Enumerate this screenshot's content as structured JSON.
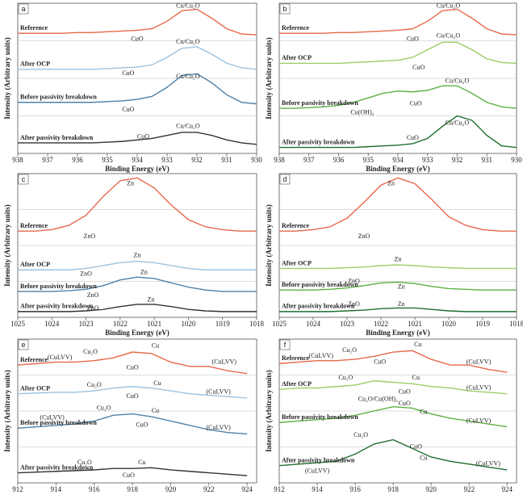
{
  "chart_data": [
    {
      "type": "line",
      "panel": "a",
      "xlabel": "Binding Energy (eV)",
      "ylabel": "Intensity (Arbitrary units)",
      "x": [
        938,
        937.5,
        937,
        936.5,
        936,
        935.5,
        935,
        934.5,
        934,
        933.5,
        933,
        932.5,
        932,
        931.5,
        931,
        930.5,
        930
      ],
      "xlim": [
        938,
        930
      ],
      "xticks": [
        938,
        937,
        936,
        935,
        934,
        933,
        932,
        931,
        930
      ],
      "ylim": [
        0,
        100
      ],
      "series": [
        {
          "name": "Reference",
          "color": "#e8684a",
          "values": [
            80,
            80,
            80,
            80,
            80.5,
            80.5,
            81,
            81.5,
            82,
            83,
            88,
            95,
            96,
            90,
            83,
            79.5,
            79
          ]
        },
        {
          "name": "After OCP",
          "color": "#9cc3e0",
          "values": [
            56,
            56,
            56,
            56,
            56,
            56,
            56.5,
            57,
            57.5,
            59,
            64,
            70,
            71,
            66,
            60,
            57,
            56
          ]
        },
        {
          "name": "Before passivity breakdown",
          "color": "#4f81a8",
          "values": [
            34,
            34,
            34,
            34,
            34,
            34,
            34.5,
            35,
            36,
            38,
            44,
            52,
            53,
            47,
            39,
            34,
            33
          ]
        },
        {
          "name": "After passivity breakdown",
          "color": "#333333",
          "values": [
            7,
            7,
            7,
            7,
            7,
            7,
            7.5,
            8,
            9,
            10,
            12,
            14,
            14,
            12,
            9,
            7,
            6
          ]
        }
      ],
      "annotations": [
        {
          "text": "Cu/Cu₂O",
          "x": 932.3,
          "y": 98
        },
        {
          "text": "CuO",
          "x": 934,
          "y": 76
        },
        {
          "text": "Cu/Cu₂O",
          "x": 932.3,
          "y": 74
        },
        {
          "text": "CuO",
          "x": 934.3,
          "y": 53
        },
        {
          "text": "Cu/Cu₂O",
          "x": 932.3,
          "y": 51
        },
        {
          "text": "CuO",
          "x": 934.3,
          "y": 29
        },
        {
          "text": "Cu/Cu₂O",
          "x": 932.3,
          "y": 18
        },
        {
          "text": "CuO",
          "x": 933.8,
          "y": 11
        }
      ]
    },
    {
      "type": "line",
      "panel": "b",
      "xlabel": "Binding Energy (eV)",
      "ylabel": "Intensity (Arbitrary units)",
      "x": [
        938,
        937.5,
        937,
        936.5,
        936,
        935.5,
        935,
        934.5,
        934,
        933.5,
        933,
        932.5,
        932,
        931.5,
        931,
        930.5,
        930
      ],
      "xlim": [
        938,
        930
      ],
      "xticks": [
        938,
        937,
        936,
        935,
        934,
        933,
        932,
        931,
        930
      ],
      "ylim": [
        0,
        100
      ],
      "series": [
        {
          "name": "Reference",
          "color": "#e8684a",
          "values": [
            80,
            80,
            80,
            80,
            80.5,
            80.5,
            81,
            81.5,
            82,
            83,
            88,
            95,
            96,
            90,
            83,
            79.5,
            79
          ]
        },
        {
          "name": "After OCP",
          "color": "#9ccc65",
          "values": [
            60,
            60,
            60,
            60,
            60,
            60.5,
            61,
            61.5,
            62,
            64,
            69,
            74,
            74,
            69,
            63,
            60.5,
            60
          ]
        },
        {
          "name": "Before passivity breakdown",
          "color": "#5cb044",
          "values": [
            30,
            30,
            30.5,
            31,
            32,
            34,
            37,
            40,
            41.5,
            41,
            42,
            45,
            45,
            40,
            34,
            31,
            30
          ]
        },
        {
          "name": "After passivity breakdown",
          "color": "#1f6e2e",
          "values": [
            4,
            4,
            4,
            4,
            4,
            4,
            4.5,
            5,
            5.5,
            6.5,
            10,
            18,
            25,
            22,
            12,
            5,
            4
          ]
        }
      ],
      "annotations": [
        {
          "text": "Cu/Cu₂O",
          "x": 932.3,
          "y": 98
        },
        {
          "text": "CuO",
          "x": 933.5,
          "y": 76
        },
        {
          "text": "Cu/Cu₂O",
          "x": 932.3,
          "y": 78
        },
        {
          "text": "CuO",
          "x": 933.3,
          "y": 57
        },
        {
          "text": "Cu/Cu₂O",
          "x": 932,
          "y": 48
        },
        {
          "text": "Cu(OH)₂",
          "x": 935.2,
          "y": 27
        },
        {
          "text": "CuO",
          "x": 933.4,
          "y": 33
        },
        {
          "text": "Cu/Cu₂O",
          "x": 932,
          "y": 20
        },
        {
          "text": "CuO",
          "x": 933.5,
          "y": 10
        }
      ]
    },
    {
      "type": "line",
      "panel": "c",
      "xlabel": "Binding Energy (eV)",
      "ylabel": "Intensity (Arbitrary units)",
      "x": [
        1025,
        1024.5,
        1024,
        1023.5,
        1023,
        1022.5,
        1022,
        1021.5,
        1021,
        1020.5,
        1020,
        1019.5,
        1019,
        1018.5,
        1018
      ],
      "xlim": [
        1025,
        1018
      ],
      "xticks": [
        1025,
        1024,
        1023,
        1022,
        1021,
        1020,
        1019,
        1018
      ],
      "ylim": [
        0,
        100
      ],
      "series": [
        {
          "name": "Reference",
          "color": "#e8684a",
          "values": [
            60,
            60,
            61,
            64,
            71,
            84,
            95,
            97,
            90,
            78,
            68,
            63,
            61,
            60,
            60
          ]
        },
        {
          "name": "After OCP",
          "color": "#9cc3e0",
          "values": [
            33,
            33,
            33,
            33,
            34,
            36,
            38,
            39,
            38,
            36,
            34,
            33,
            33,
            33,
            33
          ]
        },
        {
          "name": "Before passivity breakdown",
          "color": "#4f81a8",
          "values": [
            18,
            18,
            18,
            18.5,
            19.5,
            22,
            26,
            28,
            27,
            24,
            21,
            19,
            18,
            18,
            18
          ]
        },
        {
          "name": "After passivity breakdown",
          "color": "#333333",
          "values": [
            4,
            4,
            4,
            4,
            4.5,
            5.5,
            7.5,
            9,
            9,
            7.5,
            5.5,
            4.5,
            4,
            4,
            4
          ]
        }
      ],
      "annotations": [
        {
          "text": "Zn",
          "x": 1021.7,
          "y": 93
        },
        {
          "text": "ZnO",
          "x": 1022.9,
          "y": 56
        },
        {
          "text": "Zn",
          "x": 1021.5,
          "y": 43
        },
        {
          "text": "ZnO",
          "x": 1023,
          "y": 30
        },
        {
          "text": "Zn",
          "x": 1021.3,
          "y": 31
        },
        {
          "text": "ZnO",
          "x": 1022.8,
          "y": 15
        },
        {
          "text": "Zn",
          "x": 1021.1,
          "y": 12
        },
        {
          "text": "ZnO",
          "x": 1022.8,
          "y": 6
        }
      ]
    },
    {
      "type": "line",
      "panel": "d",
      "xlabel": "Binding Energy (eV)",
      "ylabel": "Intensity (Arbitrary units)",
      "x": [
        1025,
        1024.5,
        1024,
        1023.5,
        1023,
        1022.5,
        1022,
        1021.5,
        1021,
        1020.5,
        1020,
        1019.5,
        1019,
        1018.5,
        1018
      ],
      "xlim": [
        1025,
        1018
      ],
      "xticks": [
        1025,
        1024,
        1023,
        1022,
        1021,
        1020,
        1019,
        1018
      ],
      "ylim": [
        0,
        100
      ],
      "series": [
        {
          "name": "Reference",
          "color": "#e8684a",
          "values": [
            60,
            60,
            61,
            63,
            69,
            80,
            92,
            97,
            93,
            82,
            70,
            64,
            61,
            60,
            60
          ]
        },
        {
          "name": "After OCP",
          "color": "#9ccc65",
          "values": [
            34,
            34,
            34,
            34,
            34.5,
            35,
            36,
            36.5,
            36,
            35,
            34.5,
            34,
            34,
            34,
            34
          ]
        },
        {
          "name": "Before passivity breakdown",
          "color": "#5cb044",
          "values": [
            19,
            19,
            19,
            19.5,
            20.5,
            22,
            24,
            24.5,
            23.5,
            21.5,
            20,
            19.5,
            19,
            19,
            19
          ]
        },
        {
          "name": "After passivity breakdown",
          "color": "#1f6e2e",
          "values": [
            4,
            4,
            4,
            4,
            4.5,
            5,
            6,
            6.5,
            6.5,
            5.5,
            4.5,
            4,
            4,
            4,
            4
          ]
        }
      ],
      "annotations": [
        {
          "text": "Zn",
          "x": 1021.7,
          "y": 93
        },
        {
          "text": "ZnO",
          "x": 1022.5,
          "y": 56
        },
        {
          "text": "Zn",
          "x": 1021.5,
          "y": 40
        },
        {
          "text": "ZnO",
          "x": 1022.8,
          "y": 25
        },
        {
          "text": "Zn",
          "x": 1021.4,
          "y": 21
        },
        {
          "text": "ZnO",
          "x": 1022.8,
          "y": 9
        },
        {
          "text": "Zn",
          "x": 1021.4,
          "y": 9
        }
      ]
    },
    {
      "type": "line",
      "panel": "e",
      "ylabel": "Intensity (Arbitrary units)",
      "x": [
        912,
        913,
        914,
        915,
        916,
        917,
        918,
        919,
        920,
        921,
        922,
        923,
        924
      ],
      "xlim": [
        912,
        924.5
      ],
      "xticks": [
        912,
        914,
        916,
        918,
        920,
        922,
        924
      ],
      "ylim": [
        0,
        100
      ],
      "series": [
        {
          "name": "Reference",
          "color": "#e8684a",
          "values": [
            82,
            83,
            84,
            84,
            85,
            87,
            91,
            90,
            84,
            81,
            81,
            78,
            76
          ]
        },
        {
          "name": "After OCP",
          "color": "#9cc3e0",
          "values": [
            62,
            62.5,
            63,
            63,
            64,
            66,
            67,
            66,
            64,
            62,
            61,
            60,
            59
          ]
        },
        {
          "name": "Before passivity breakdown",
          "color": "#4f81a8",
          "values": [
            38,
            39,
            40,
            41,
            43,
            47,
            48,
            46,
            43,
            40,
            37,
            35,
            34
          ]
        },
        {
          "name": "After passivity breakdown",
          "color": "#333333",
          "values": [
            7,
            7.5,
            8,
            8.5,
            9,
            10,
            10,
            10.5,
            9,
            8,
            7,
            6,
            5
          ]
        }
      ],
      "annotations": [
        {
          "text": "(CuLVV)",
          "x": 914.2,
          "y": 87
        },
        {
          "text": "Cu₂O",
          "x": 915.8,
          "y": 91
        },
        {
          "text": "Cu",
          "x": 919.2,
          "y": 95
        },
        {
          "text": "CuO",
          "x": 918,
          "y": 80
        },
        {
          "text": "(CuLVV)",
          "x": 922.8,
          "y": 84
        },
        {
          "text": "Cu₂O",
          "x": 916,
          "y": 68
        },
        {
          "text": "Cu",
          "x": 919.3,
          "y": 69
        },
        {
          "text": "CuO",
          "x": 918,
          "y": 60
        },
        {
          "text": "(CuLVV)",
          "x": 922.5,
          "y": 63
        },
        {
          "text": "(CuLVV)",
          "x": 913.8,
          "y": 45
        },
        {
          "text": "Cu₂O",
          "x": 916.5,
          "y": 52
        },
        {
          "text": "Cu",
          "x": 919.2,
          "y": 50
        },
        {
          "text": "CuO",
          "x": 918.5,
          "y": 40
        },
        {
          "text": "(CuLVV)",
          "x": 922.5,
          "y": 38
        },
        {
          "text": "Cu₂O",
          "x": 915.5,
          "y": 14
        },
        {
          "text": "Cu",
          "x": 918.5,
          "y": 14
        },
        {
          "text": "CuO",
          "x": 917.8,
          "y": 5
        }
      ]
    },
    {
      "type": "line",
      "panel": "f",
      "ylabel": "Intensity (Arbitrary units)",
      "x": [
        912,
        913,
        914,
        915,
        916,
        917,
        918,
        919,
        920,
        921,
        922,
        923,
        924
      ],
      "xlim": [
        912,
        924.5
      ],
      "xticks": [
        912,
        914,
        916,
        918,
        920,
        922,
        924
      ],
      "ylim": [
        0,
        100
      ],
      "series": [
        {
          "name": "Reference",
          "color": "#e8684a",
          "values": [
            83,
            84,
            85,
            85,
            86,
            88,
            91,
            92,
            86,
            82,
            82,
            79,
            77
          ]
        },
        {
          "name": "After OCP",
          "color": "#9ccc65",
          "values": [
            65,
            66,
            66,
            67,
            68,
            71,
            70,
            69,
            67,
            66,
            64,
            63,
            62
          ]
        },
        {
          "name": "Before passivity breakdown",
          "color": "#5cb044",
          "values": [
            42,
            43,
            44,
            45,
            47,
            50,
            53,
            52,
            48,
            45,
            43,
            41,
            39
          ]
        },
        {
          "name": "After passivity breakdown",
          "color": "#1f6e2e",
          "values": [
            12,
            13,
            14,
            15,
            20,
            27,
            30,
            24,
            18,
            15,
            13,
            11,
            9
          ]
        }
      ],
      "annotations": [
        {
          "text": "(CuLVV)",
          "x": 914.2,
          "y": 88
        },
        {
          "text": "Cu₂O",
          "x": 915.7,
          "y": 92
        },
        {
          "text": "Cu",
          "x": 919.3,
          "y": 96
        },
        {
          "text": "CuO",
          "x": 917.3,
          "y": 84
        },
        {
          "text": "(CuLVV)",
          "x": 922.5,
          "y": 84
        },
        {
          "text": "Cu₂O",
          "x": 915.5,
          "y": 73
        },
        {
          "text": "Cu",
          "x": 919.2,
          "y": 73
        },
        {
          "text": "CuO",
          "x": 918.6,
          "y": 63
        },
        {
          "text": "(CuLVV)",
          "x": 922.5,
          "y": 66
        },
        {
          "text": "Cu₂O/Cu(OH)₂",
          "x": 917.2,
          "y": 58
        },
        {
          "text": "CuO",
          "x": 918.6,
          "y": 55
        },
        {
          "text": "Cu",
          "x": 919.6,
          "y": 49
        },
        {
          "text": "(CuLVV)",
          "x": 922.5,
          "y": 43
        },
        {
          "text": "Cu₂O",
          "x": 916.3,
          "y": 33
        },
        {
          "text": "CuO",
          "x": 919.2,
          "y": 25
        },
        {
          "text": "Cu",
          "x": 919.6,
          "y": 17
        },
        {
          "text": "(CuLVV)",
          "x": 914,
          "y": 8
        },
        {
          "text": "(CuLVV)",
          "x": 923,
          "y": 13
        }
      ]
    }
  ]
}
